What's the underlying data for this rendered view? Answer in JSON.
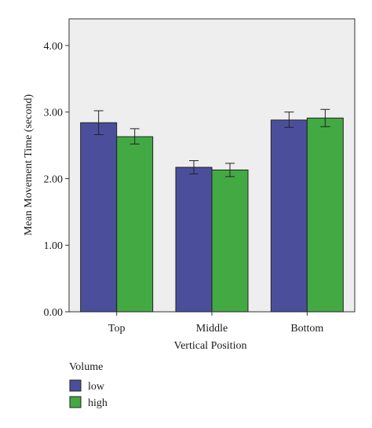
{
  "chart_data": {
    "type": "bar",
    "xlabel": "Vertical Position",
    "ylabel": "Mean Movement Time (second)",
    "categories": [
      "Top",
      "Middle",
      "Bottom"
    ],
    "ylim": [
      0,
      4.4
    ],
    "yticks": [
      0,
      1,
      2,
      3,
      4
    ],
    "ytick_labels": [
      "0.00",
      "1.00",
      "2.00",
      "3.00",
      "4.00"
    ],
    "grid": false,
    "legend": {
      "title": "Volume",
      "placement": "bottom-left"
    },
    "series": [
      {
        "name": "low",
        "color": "#4b4f9b",
        "values": [
          2.84,
          2.17,
          2.88
        ],
        "error_low": [
          2.66,
          2.07,
          2.77
        ],
        "error_high": [
          3.02,
          2.27,
          3.0
        ]
      },
      {
        "name": "high",
        "color": "#43a943",
        "values": [
          2.63,
          2.13,
          2.91
        ],
        "error_low": [
          2.52,
          2.03,
          2.78
        ],
        "error_high": [
          2.75,
          2.23,
          3.04
        ]
      }
    ]
  }
}
